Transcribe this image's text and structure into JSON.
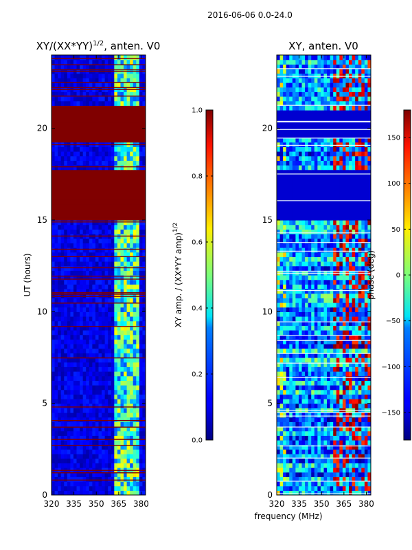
{
  "suptitle": "2016-06-06 0.0-24.0",
  "chart_data": [
    {
      "type": "heatmap",
      "title_main": "XY/(XX*YY)",
      "title_sup": "1/2",
      "title_rest": ", anten. V0",
      "ylabel": "UT (hours)",
      "xlim": [
        320,
        383
      ],
      "ylim": [
        0,
        24
      ],
      "xticks": [
        320,
        335,
        350,
        365,
        380
      ],
      "xtick_labels": [
        "320",
        "335",
        "350",
        "365",
        "380"
      ],
      "yticks": [
        0,
        5,
        10,
        15,
        20
      ],
      "ytick_labels": [
        "0",
        "5",
        "10",
        "15",
        "20"
      ],
      "saturated_bands_hours": [
        [
          15.0,
          17.7
        ],
        [
          19.2,
          21.3
        ]
      ],
      "dominant_value": 0.1,
      "colorbar": {
        "label_main": "XY amp. / (XX*YY amp)",
        "label_sup": "1/2",
        "range": [
          0.0,
          1.0
        ],
        "ticks": [
          0.0,
          0.2,
          0.4,
          0.6,
          0.8,
          1.0
        ],
        "tick_labels": [
          "0.0",
          "0.2",
          "0.4",
          "0.6",
          "0.8",
          "1.0"
        ]
      }
    },
    {
      "type": "heatmap",
      "title": "XY, anten. V0",
      "xlabel": "frequency (MHz)",
      "xlim": [
        320,
        383
      ],
      "ylim": [
        0,
        24
      ],
      "xticks": [
        320,
        335,
        350,
        365,
        380
      ],
      "xtick_labels": [
        "320",
        "335",
        "350",
        "365",
        "380"
      ],
      "yticks": [
        0,
        5,
        10,
        15,
        20
      ],
      "ytick_labels": [
        "0",
        "5",
        "10",
        "15",
        "20"
      ],
      "flat_bands_hours": [
        [
          15.0,
          17.7
        ],
        [
          19.5,
          21.0
        ]
      ],
      "colorbar": {
        "label": "phase (deg)",
        "range": [
          -180,
          180
        ],
        "ticks": [
          -150,
          -100,
          -50,
          0,
          50,
          100,
          150
        ],
        "tick_labels": [
          "−150",
          "−100",
          "−50",
          "0",
          "50",
          "100",
          "150"
        ]
      }
    }
  ]
}
